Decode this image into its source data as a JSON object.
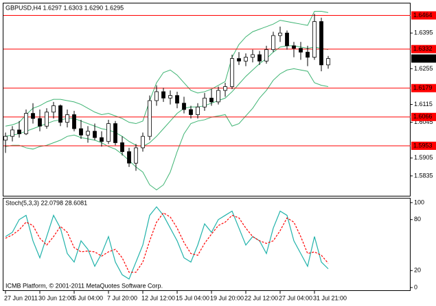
{
  "chart_data": [
    {
      "type": "candlestick",
      "title": "GBPUSD,H4 1.6297 1.6303 1.6290 1.6295",
      "categories": [
        "27 Jun 2011",
        null,
        null,
        null,
        null,
        "30 Jun 12:00",
        null,
        null,
        null,
        null,
        "5 Jul 04:00",
        null,
        null,
        null,
        null,
        "7 Jul 20:00",
        null,
        null,
        null,
        null,
        "12 Jul 12:00",
        null,
        null,
        null,
        null,
        "15 Jul 04:00",
        null,
        null,
        null,
        null,
        "19 Jul 20:00",
        null,
        null,
        null,
        null,
        "22 Jul 12:00",
        null,
        null,
        null,
        null,
        "27 Jul 04:00",
        null,
        null,
        null,
        null,
        "31 Jul 21:00",
        null,
        null
      ],
      "open": [
        1.5975,
        1.599,
        1.6015,
        1.6,
        1.608,
        1.606,
        1.603,
        1.6085,
        1.611,
        1.6045,
        1.6075,
        1.602,
        1.5995,
        1.601,
        1.5985,
        1.597,
        1.604,
        1.5965,
        1.593,
        1.5885,
        1.5945,
        1.599,
        1.613,
        1.6165,
        1.614,
        1.615,
        1.612,
        1.6095,
        1.6075,
        1.6105,
        1.614,
        1.6125,
        1.617,
        1.6185,
        1.6295,
        1.6285,
        1.63,
        1.631,
        1.6285,
        1.633,
        1.6385,
        1.6395,
        1.6345,
        1.6335,
        1.632,
        1.63,
        1.644,
        1.627
      ],
      "high": [
        1.6005,
        1.603,
        1.605,
        1.6095,
        1.612,
        1.6095,
        1.61,
        1.6125,
        1.6115,
        1.6095,
        1.609,
        1.6055,
        1.603,
        1.604,
        1.601,
        1.6055,
        1.605,
        1.599,
        1.5945,
        1.596,
        1.6005,
        1.615,
        1.619,
        1.618,
        1.617,
        1.6165,
        1.6145,
        1.611,
        1.612,
        1.616,
        1.6175,
        1.6185,
        1.62,
        1.631,
        1.632,
        1.6315,
        1.633,
        1.6325,
        1.6345,
        1.64,
        1.642,
        1.6405,
        1.636,
        1.636,
        1.6345,
        1.647,
        1.6455,
        1.6305
      ],
      "low": [
        1.5925,
        1.597,
        1.5985,
        1.5995,
        1.604,
        1.601,
        1.602,
        1.606,
        1.603,
        1.6025,
        1.601,
        1.598,
        1.5965,
        1.5975,
        1.595,
        1.596,
        1.5955,
        1.5915,
        1.587,
        1.5855,
        1.593,
        1.5975,
        1.611,
        1.6125,
        1.6115,
        1.61,
        1.608,
        1.606,
        1.606,
        1.609,
        1.611,
        1.6115,
        1.6145,
        1.6175,
        1.627,
        1.6265,
        1.628,
        1.627,
        1.6275,
        1.632,
        1.636,
        1.633,
        1.63,
        1.629,
        1.6265,
        1.629,
        1.6245,
        1.6255
      ],
      "close": [
        1.599,
        1.6015,
        1.6,
        1.608,
        1.606,
        1.603,
        1.6085,
        1.611,
        1.6045,
        1.6075,
        1.602,
        1.5995,
        1.601,
        1.5985,
        1.597,
        1.604,
        1.5965,
        1.593,
        1.5885,
        1.5945,
        1.599,
        1.613,
        1.6165,
        1.614,
        1.615,
        1.612,
        1.6095,
        1.6075,
        1.6105,
        1.614,
        1.6125,
        1.617,
        1.6185,
        1.6295,
        1.6285,
        1.63,
        1.631,
        1.6285,
        1.633,
        1.6385,
        1.6395,
        1.6345,
        1.6335,
        1.632,
        1.63,
        1.644,
        1.627,
        1.6295
      ],
      "bands": {
        "color": "#3cb371",
        "upper": [
          1.603,
          1.6035,
          1.6045,
          1.6075,
          1.61,
          1.611,
          1.6125,
          1.6135,
          1.6135,
          1.613,
          1.6125,
          1.6115,
          1.61,
          1.6085,
          1.6075,
          1.608,
          1.607,
          1.606,
          1.6045,
          1.604,
          1.605,
          1.613,
          1.62,
          1.624,
          1.625,
          1.623,
          1.62,
          1.617,
          1.616,
          1.6165,
          1.6175,
          1.619,
          1.6205,
          1.63,
          1.635,
          1.638,
          1.64,
          1.641,
          1.642,
          1.643,
          1.6445,
          1.644,
          1.6435,
          1.643,
          1.6425,
          1.648,
          1.648,
          1.6475
        ],
        "middle": [
          1.599,
          1.5995,
          1.6,
          1.601,
          1.602,
          1.603,
          1.604,
          1.605,
          1.6055,
          1.606,
          1.606,
          1.605,
          1.604,
          1.603,
          1.602,
          1.6015,
          1.6005,
          1.599,
          1.597,
          1.5955,
          1.595,
          1.5965,
          1.599,
          1.602,
          1.605,
          1.608,
          1.61,
          1.6105,
          1.6105,
          1.611,
          1.612,
          1.613,
          1.614,
          1.6165,
          1.6195,
          1.6225,
          1.625,
          1.6275,
          1.6295,
          1.632,
          1.634,
          1.6345,
          1.6345,
          1.634,
          1.6335,
          1.634,
          1.6335,
          1.633
        ],
        "lower": [
          1.595,
          1.5955,
          1.5955,
          1.5945,
          1.594,
          1.595,
          1.5955,
          1.5965,
          1.5975,
          1.599,
          1.5995,
          1.5985,
          1.598,
          1.5975,
          1.5965,
          1.595,
          1.594,
          1.592,
          1.5895,
          1.587,
          1.585,
          1.58,
          1.578,
          1.58,
          1.585,
          1.593,
          1.6,
          1.604,
          1.605,
          1.6055,
          1.6065,
          1.607,
          1.6075,
          1.603,
          1.604,
          1.607,
          1.61,
          1.614,
          1.617,
          1.621,
          1.6235,
          1.625,
          1.6255,
          1.625,
          1.6245,
          1.62,
          1.619,
          1.6185
        ]
      },
      "levels": {
        "color": "#ff0000",
        "values": [
          1.6464,
          1.6332,
          1.6179,
          1.6066,
          1.5953
        ]
      },
      "ylim": [
        1.5757,
        1.6511
      ],
      "yticks": [
        1.6395,
        1.6255,
        1.6115,
        1.6045,
        1.5905,
        1.5835
      ],
      "up_color": "#ffffff",
      "down_color": "#000000"
    },
    {
      "type": "line",
      "title": "Stoch(5,3,3) 22.0798 28.6081",
      "series": [
        {
          "color": "#20b2aa",
          "values": [
            60,
            65,
            80,
            85,
            55,
            35,
            60,
            85,
            70,
            40,
            30,
            55,
            45,
            25,
            40,
            60,
            30,
            15,
            10,
            30,
            50,
            85,
            95,
            85,
            70,
            55,
            35,
            30,
            50,
            75,
            65,
            80,
            85,
            90,
            70,
            50,
            60,
            55,
            40,
            70,
            90,
            85,
            55,
            40,
            25,
            60,
            30,
            22.0798
          ]
        },
        {
          "color": "#ff0000",
          "dashed": true,
          "values": [
            58,
            62,
            68,
            77,
            73,
            58,
            50,
            60,
            72,
            65,
            47,
            42,
            43,
            42,
            37,
            42,
            45,
            35,
            18,
            18,
            30,
            55,
            77,
            88,
            83,
            70,
            53,
            40,
            38,
            52,
            63,
            73,
            77,
            85,
            82,
            70,
            60,
            55,
            52,
            55,
            67,
            82,
            77,
            60,
            40,
            42,
            38,
            28.6081
          ]
        }
      ],
      "ylim": [
        -3.2,
        104.8
      ],
      "yticks": [
        100,
        80,
        20,
        0
      ],
      "footer": "ICMB Platform, © 2001-2011 MetaQuotes Software Corp."
    }
  ]
}
